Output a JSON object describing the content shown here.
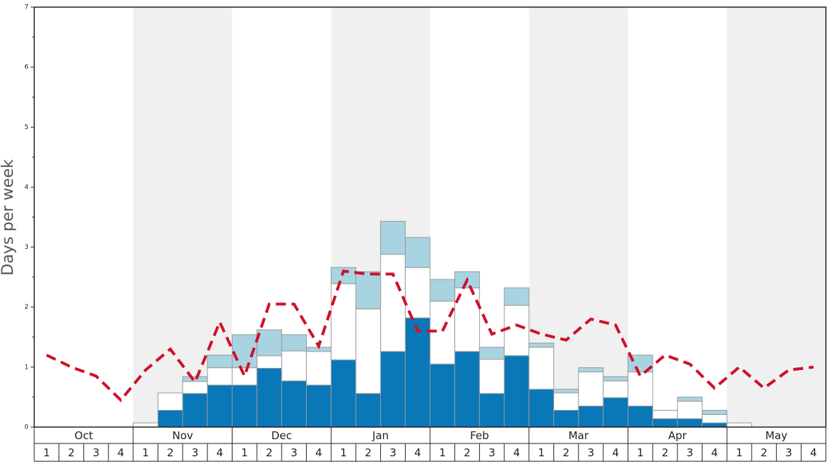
{
  "chart_data": {
    "type": "bar",
    "y_label": "Days per week",
    "months": [
      "Oct",
      "Nov",
      "Dec",
      "Jan",
      "Feb",
      "Mar",
      "Apr",
      "May"
    ],
    "categories": [
      "1",
      "2",
      "3",
      "4",
      "1",
      "2",
      "3",
      "4",
      "1",
      "2",
      "3",
      "4",
      "1",
      "2",
      "3",
      "4",
      "1",
      "2",
      "3",
      "4",
      "1",
      "2",
      "3",
      "4",
      "1",
      "2",
      "3",
      "4",
      "1",
      "2",
      "3",
      "4"
    ],
    "series": [
      {
        "color": "#0a77b8",
        "values": [
          0,
          0,
          0,
          0,
          0,
          0.28,
          0.56,
          0.7,
          0.7,
          0.98,
          0.77,
          0.7,
          1.12,
          0.56,
          1.26,
          1.82,
          1.05,
          1.26,
          0.56,
          1.19,
          0.63,
          0.28,
          0.35,
          0.49,
          0.35,
          0.14,
          0.14,
          0.07,
          0,
          0,
          0,
          0
        ]
      },
      {
        "color": "#ffffff",
        "values": [
          0,
          0,
          0,
          0,
          0.07,
          0.29,
          0.2,
          0.29,
          0.29,
          0.21,
          0.5,
          0.56,
          1.27,
          1.41,
          1.62,
          0.84,
          1.05,
          1.06,
          0.57,
          0.84,
          0.7,
          0.29,
          0.57,
          0.28,
          0.57,
          0.14,
          0.29,
          0.14,
          0.07,
          0,
          0,
          0
        ]
      },
      {
        "color": "#a8d4e2",
        "values": [
          0,
          0,
          0,
          0,
          0,
          0,
          0.08,
          0.21,
          0.55,
          0.43,
          0.27,
          0.07,
          0.27,
          0.62,
          0.55,
          0.5,
          0.36,
          0.27,
          0.2,
          0.29,
          0.07,
          0.06,
          0.07,
          0.07,
          0.28,
          0,
          0.07,
          0.07,
          0,
          0,
          0,
          0
        ]
      },
      {
        "type": "line",
        "color": "#d0102a",
        "values": [
          1.2,
          1.0,
          0.85,
          0.45,
          0.95,
          1.3,
          0.75,
          1.75,
          0.85,
          2.05,
          2.05,
          1.35,
          2.6,
          2.55,
          2.55,
          1.6,
          1.6,
          2.45,
          1.55,
          1.7,
          1.55,
          1.45,
          1.8,
          1.7,
          0.85,
          1.2,
          1.05,
          0.65,
          1.0,
          0.65,
          0.95,
          1.0
        ]
      }
    ],
    "ylim": [
      0,
      7
    ],
    "yticks": [
      0,
      1,
      2,
      3,
      4,
      5,
      6,
      7
    ]
  }
}
